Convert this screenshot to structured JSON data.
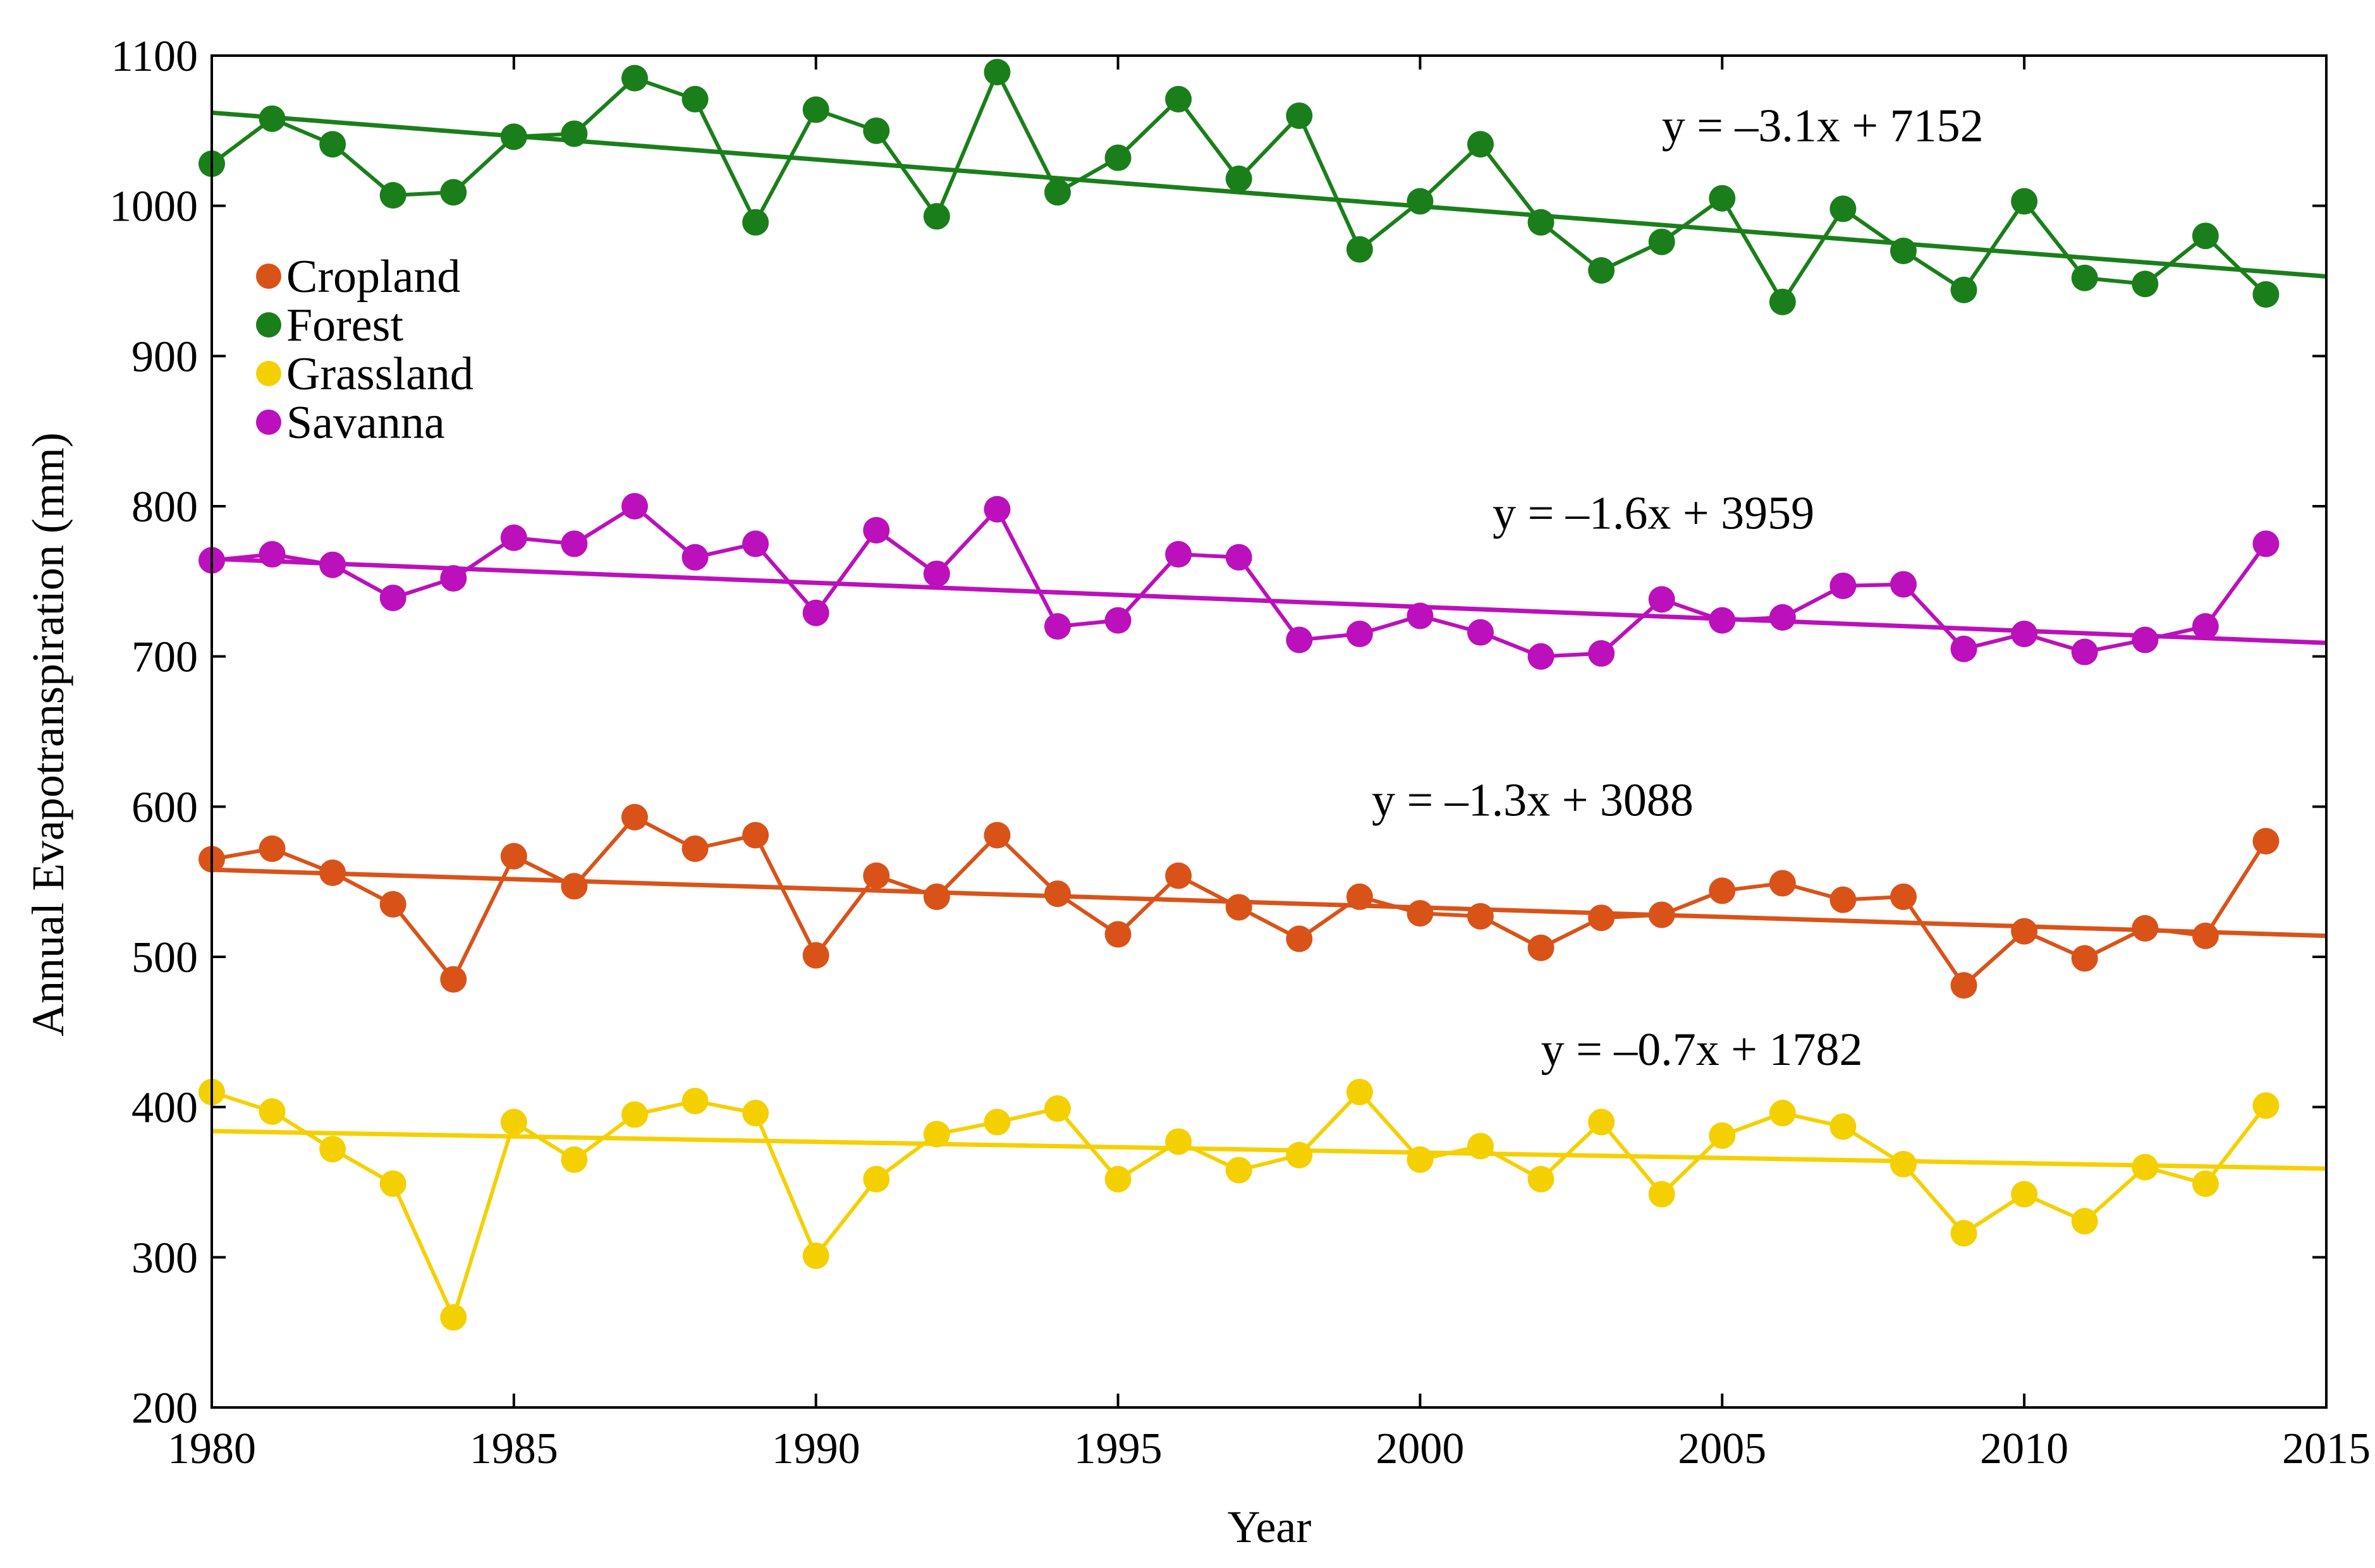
{
  "chart_data": {
    "type": "line",
    "title": "",
    "xlabel": "Year",
    "ylabel": "Annual Evapotranspiration (mm)",
    "xlim": [
      1980,
      2015
    ],
    "ylim": [
      200,
      1100
    ],
    "x_ticks": [
      1980,
      1985,
      1990,
      1995,
      2000,
      2005,
      2010,
      2015
    ],
    "y_ticks": [
      200,
      300,
      400,
      500,
      600,
      700,
      800,
      900,
      1000,
      1100
    ],
    "grid": false,
    "legend_position": "upper-left",
    "x": [
      1980,
      1981,
      1982,
      1983,
      1984,
      1985,
      1986,
      1987,
      1988,
      1989,
      1990,
      1991,
      1992,
      1993,
      1994,
      1995,
      1996,
      1997,
      1998,
      1999,
      2000,
      2001,
      2002,
      2003,
      2004,
      2005,
      2006,
      2007,
      2008,
      2009,
      2010,
      2011,
      2012,
      2013,
      2014
    ],
    "series": [
      {
        "name": "Cropland",
        "color": "#d95319",
        "values": [
          565,
          572,
          556,
          535,
          485,
          567,
          547,
          593,
          572,
          581,
          501,
          554,
          540,
          581,
          542,
          515,
          554,
          533,
          512,
          540,
          529,
          527,
          506,
          526,
          528,
          544,
          549,
          538,
          540,
          481,
          517,
          499,
          519,
          514,
          577
        ],
        "trend": {
          "equation": "y = –1.3x + 3088",
          "start": [
            1980,
            558
          ],
          "end": [
            2015,
            514
          ]
        }
      },
      {
        "name": "Forest",
        "color": "#1a7f1a",
        "values": [
          1028,
          1058,
          1041,
          1007,
          1009,
          1046,
          1048,
          1085,
          1071,
          989,
          1064,
          1050,
          993,
          1089,
          1009,
          1032,
          1071,
          1018,
          1060,
          971,
          1003,
          1041,
          989,
          957,
          976,
          1005,
          936,
          998,
          970,
          944,
          1003,
          952,
          948,
          980,
          941
        ],
        "trend": {
          "equation": "y = –3.1x + 7152",
          "start": [
            1980,
            1062
          ],
          "end": [
            2015,
            953
          ]
        }
      },
      {
        "name": "Grassland",
        "color": "#f5d000",
        "values": [
          410,
          397,
          372,
          349,
          260,
          390,
          365,
          395,
          404,
          396,
          301,
          352,
          382,
          390,
          399,
          352,
          377,
          358,
          368,
          410,
          365,
          374,
          352,
          390,
          342,
          381,
          396,
          387,
          362,
          316,
          342,
          324,
          360,
          349,
          401
        ],
        "trend": {
          "equation": "y = –0.7x + 1782",
          "start": [
            1980,
            384
          ],
          "end": [
            2015,
            359
          ]
        }
      },
      {
        "name": "Savanna",
        "color": "#bb10bb",
        "values": [
          764,
          768,
          761,
          739,
          752,
          779,
          775,
          800,
          766,
          775,
          729,
          784,
          755,
          798,
          720,
          724,
          768,
          766,
          711,
          715,
          727,
          716,
          700,
          702,
          738,
          724,
          726,
          747,
          748,
          705,
          715,
          703,
          711,
          720,
          775
        ],
        "trend": {
          "equation": "y = –1.6x + 3959",
          "start": [
            1980,
            765
          ],
          "end": [
            2015,
            709
          ]
        }
      }
    ],
    "annotations": [
      {
        "text": "y = –3.1x + 7152",
        "series": "Forest",
        "x": 2004,
        "y": 1043
      },
      {
        "text": "y = –1.6x + 3959",
        "series": "Savanna",
        "x": 2001.2,
        "y": 785
      },
      {
        "text": "y = –1.3x + 3088",
        "series": "Cropland",
        "x": 1999.2,
        "y": 594
      },
      {
        "text": "y = –0.7x + 1782",
        "series": "Grassland",
        "x": 2002,
        "y": 428
      }
    ]
  }
}
